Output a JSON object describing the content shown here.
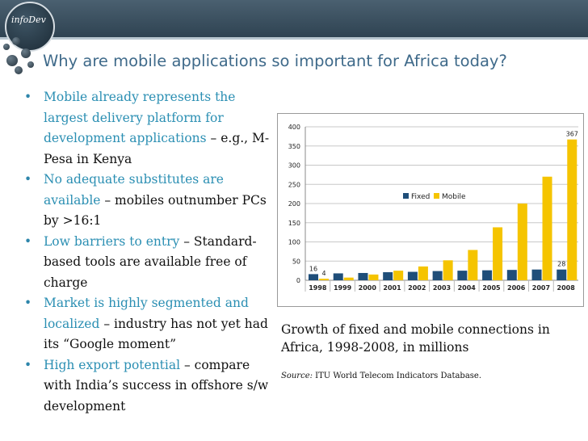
{
  "logo": {
    "text": "infoDev"
  },
  "slide": {
    "title": "Why are mobile applications so important for Africa today?",
    "bullets": [
      {
        "highlight": "Mobile already represents the largest delivery platform for development applications",
        "rest": " – e.g., M-Pesa in Kenya"
      },
      {
        "highlight": "No adequate substitutes are available",
        "rest": " – mobiles outnumber PCs by >16:1"
      },
      {
        "highlight": "Low barriers to entry",
        "rest": " – Standard-based tools are available free of charge"
      },
      {
        "highlight": "Market is highly segmented and localized",
        "rest": " – industry has not yet had its “Google moment”"
      },
      {
        "highlight": "High export potential",
        "rest": " – compare with India’s success in offshore s/w development"
      }
    ],
    "caption": "Growth of fixed and mobile connections in Africa, 1998-2008, in millions",
    "source_label": "Source:",
    "source_text": " ITU World Telecom Indicators Database."
  },
  "colors": {
    "title": "#3f6a8a",
    "highlight": "#2b8fb3",
    "fixed": "#1f4e79",
    "mobile": "#f5c400",
    "topbar": "#2f4352"
  },
  "chart_data": {
    "type": "bar",
    "categories": [
      "1998",
      "1999",
      "2000",
      "2001",
      "2002",
      "2003",
      "2004",
      "2005",
      "2006",
      "2007",
      "2008"
    ],
    "series": [
      {
        "name": "Fixed",
        "values": [
          16,
          18,
          19,
          21,
          22,
          24,
          25,
          26,
          27,
          28,
          28
        ]
      },
      {
        "name": "Mobile",
        "values": [
          4,
          7,
          15,
          25,
          36,
          52,
          79,
          138,
          200,
          270,
          367
        ]
      }
    ],
    "data_labels": [
      {
        "series": 0,
        "index": 0,
        "text": "16"
      },
      {
        "series": 1,
        "index": 0,
        "text": "4"
      },
      {
        "series": 0,
        "index": 10,
        "text": "28"
      },
      {
        "series": 1,
        "index": 10,
        "text": "367"
      }
    ],
    "yticks": [
      0,
      50,
      100,
      150,
      200,
      250,
      300,
      350,
      400
    ],
    "ylim": [
      0,
      400
    ],
    "grid": true,
    "legend_position": "middle-left"
  }
}
